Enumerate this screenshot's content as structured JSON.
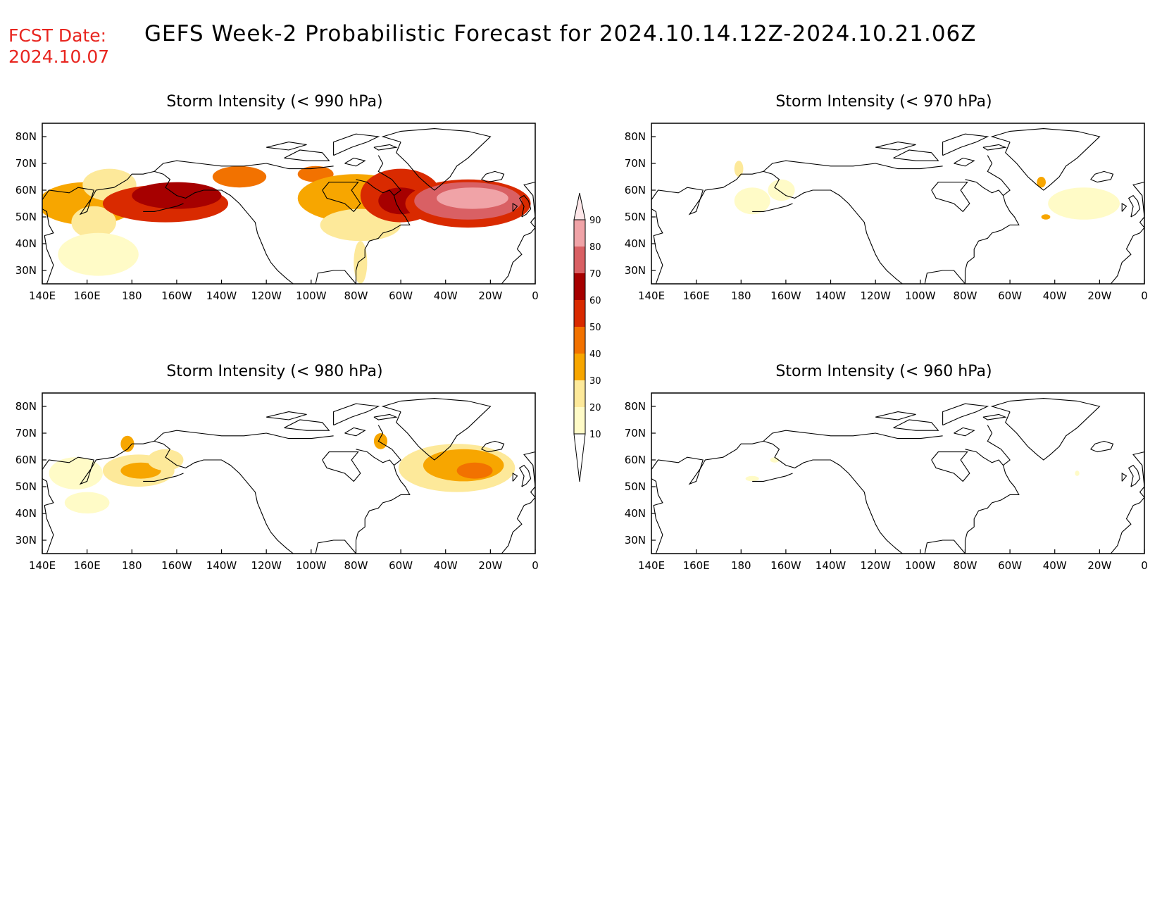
{
  "header": {
    "fcst_label": "FCST Date:",
    "fcst_date": "2024.10.07",
    "title": "GEFS Week-2 Probabilistic Forecast for 2024.10.14.12Z-2024.10.21.06Z"
  },
  "axes": {
    "x_ticks": [
      "140E",
      "160E",
      "180",
      "160W",
      "140W",
      "120W",
      "100W",
      "80W",
      "60W",
      "40W",
      "20W",
      "0"
    ],
    "y_ticks": [
      "80N",
      "70N",
      "60N",
      "50N",
      "40N",
      "30N"
    ]
  },
  "colorbar": {
    "levels": [
      "10",
      "20",
      "30",
      "40",
      "50",
      "60",
      "70",
      "80",
      "90"
    ],
    "colors": [
      "#fffbc7",
      "#fde99a",
      "#f7a600",
      "#f27200",
      "#d92a00",
      "#a60000",
      "#d96064",
      "#f0a3a7",
      "#fde6e8"
    ]
  },
  "panels": [
    {
      "title": "Storm Intensity (< 990 hPa)",
      "threshold_hpa": 990
    },
    {
      "title": "Storm Intensity (< 970 hPa)",
      "threshold_hpa": 970
    },
    {
      "title": "Storm Intensity (< 980 hPa)",
      "threshold_hpa": 980
    },
    {
      "title": "Storm Intensity (< 960 hPa)",
      "threshold_hpa": 960
    }
  ],
  "blobs": [
    [
      {
        "lon": 160,
        "lat": 55,
        "rx": 22,
        "ry": 8,
        "level": 3
      },
      {
        "lon": 170,
        "lat": 62,
        "rx": 12,
        "ry": 6,
        "level": 2
      },
      {
        "lon": 163,
        "lat": 48,
        "rx": 10,
        "ry": 6,
        "level": 2
      },
      {
        "lon": 165,
        "lat": 36,
        "rx": 18,
        "ry": 8,
        "level": 1
      },
      {
        "lon": 195,
        "lat": 55,
        "rx": 28,
        "ry": 7,
        "level": 5
      },
      {
        "lon": 200,
        "lat": 58,
        "rx": 20,
        "ry": 5,
        "level": 6
      },
      {
        "lon": 228,
        "lat": 65,
        "rx": 12,
        "ry": 4,
        "level": 4
      },
      {
        "lon": 262,
        "lat": 66,
        "rx": 8,
        "ry": 3,
        "level": 4
      },
      {
        "lon": 280,
        "lat": 57,
        "rx": 26,
        "ry": 9,
        "level": 3
      },
      {
        "lon": 282,
        "lat": 47,
        "rx": 18,
        "ry": 6,
        "level": 2
      },
      {
        "lon": 282,
        "lat": 33,
        "rx": 3,
        "ry": 8,
        "level": 2
      },
      {
        "lon": 300,
        "lat": 58,
        "rx": 18,
        "ry": 10,
        "level": 5
      },
      {
        "lon": 300,
        "lat": 56,
        "rx": 10,
        "ry": 5,
        "level": 6
      },
      {
        "lon": 330,
        "lat": 55,
        "rx": 28,
        "ry": 9,
        "level": 5
      },
      {
        "lon": 330,
        "lat": 56,
        "rx": 24,
        "ry": 7,
        "level": 7
      },
      {
        "lon": 332,
        "lat": 57,
        "rx": 16,
        "ry": 4,
        "level": 8
      }
    ],
    [
      {
        "lon": 179,
        "lat": 68,
        "rx": 2,
        "ry": 3,
        "level": 2
      },
      {
        "lon": 185,
        "lat": 56,
        "rx": 8,
        "ry": 5,
        "level": 1
      },
      {
        "lon": 198,
        "lat": 60,
        "rx": 6,
        "ry": 4,
        "level": 1
      },
      {
        "lon": 333,
        "lat": 55,
        "rx": 16,
        "ry": 6,
        "level": 1
      },
      {
        "lon": 314,
        "lat": 63,
        "rx": 2,
        "ry": 2,
        "level": 3
      },
      {
        "lon": 316,
        "lat": 50,
        "rx": 2,
        "ry": 1,
        "level": 3
      }
    ],
    [
      {
        "lon": 155,
        "lat": 55,
        "rx": 12,
        "ry": 6,
        "level": 1
      },
      {
        "lon": 160,
        "lat": 44,
        "rx": 10,
        "ry": 4,
        "level": 1
      },
      {
        "lon": 183,
        "lat": 56,
        "rx": 16,
        "ry": 6,
        "level": 2
      },
      {
        "lon": 184,
        "lat": 56,
        "rx": 9,
        "ry": 3,
        "level": 3
      },
      {
        "lon": 178,
        "lat": 66,
        "rx": 3,
        "ry": 3,
        "level": 3
      },
      {
        "lon": 195,
        "lat": 60,
        "rx": 8,
        "ry": 4,
        "level": 2
      },
      {
        "lon": 291,
        "lat": 67,
        "rx": 3,
        "ry": 3,
        "level": 3
      },
      {
        "lon": 325,
        "lat": 57,
        "rx": 26,
        "ry": 9,
        "level": 2
      },
      {
        "lon": 328,
        "lat": 58,
        "rx": 18,
        "ry": 6,
        "level": 3
      },
      {
        "lon": 333,
        "lat": 56,
        "rx": 8,
        "ry": 3,
        "level": 4
      }
    ],
    [
      {
        "lon": 185,
        "lat": 53,
        "rx": 3,
        "ry": 1,
        "level": 1
      },
      {
        "lon": 195,
        "lat": 60,
        "rx": 2,
        "ry": 1,
        "level": 1
      },
      {
        "lon": 330,
        "lat": 55,
        "rx": 1,
        "ry": 1,
        "level": 1
      }
    ]
  ]
}
